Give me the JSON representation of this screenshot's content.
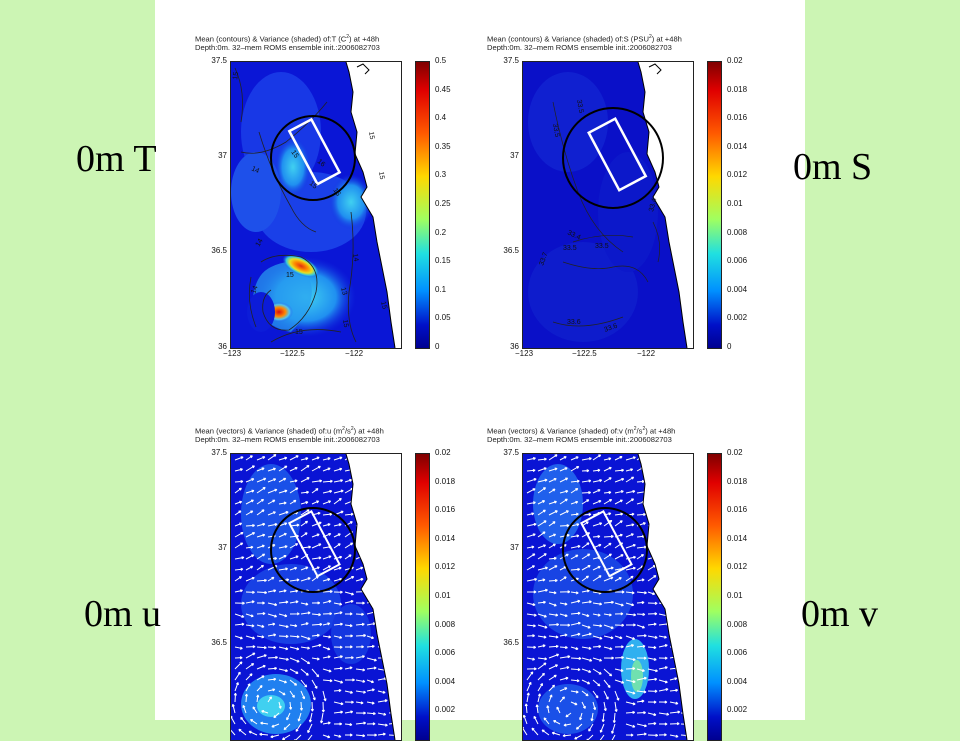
{
  "panel_labels": {
    "top_left": "0m T",
    "top_right": "0m S",
    "bottom_left": "0m u",
    "bottom_right": "0m v"
  },
  "plots": {
    "temp": {
      "title_pre": "Mean (contours) & Variance (shaded) of:T (C",
      "title_sup": "2",
      "title_post": ") at +48h",
      "subtitle": "Depth:0m. 32–mem ROMS ensemble init.:2006082703",
      "yticks": [
        "37.5",
        "37",
        "36.5",
        "36"
      ],
      "xticks": [
        "−123",
        "−122.5",
        "−122"
      ],
      "colorbar_ticks": [
        "0.5",
        "0.45",
        "0.4",
        "0.35",
        "0.3",
        "0.25",
        "0.2",
        "0.15",
        "0.1",
        "0.05",
        "0"
      ],
      "contour_labels": [
        "15",
        "15",
        "15",
        "16",
        "16",
        "14",
        "15",
        "14",
        "15",
        "14",
        "14",
        "13",
        "15",
        "15",
        "15",
        "15"
      ]
    },
    "salt": {
      "title_pre": "Mean (contours) & Variance (shaded) of:S (PSU",
      "title_sup": "2",
      "title_post": ") at +48h",
      "subtitle": "Depth:0m. 32–mem ROMS ensemble init.:2006082703",
      "yticks": [
        "37.5",
        "37",
        "36.5",
        "36"
      ],
      "xticks": [
        "−123",
        "−122.5",
        "−122"
      ],
      "colorbar_ticks": [
        "0.02",
        "0.018",
        "0.016",
        "0.014",
        "0.012",
        "0.01",
        "0.008",
        "0.006",
        "0.004",
        "0.002",
        "0"
      ],
      "contour_labels": [
        "33.5",
        "33.5",
        "33.4",
        "33.5",
        "33.5",
        "33.7",
        "33.6",
        "33.6",
        "33.4"
      ]
    },
    "u": {
      "title_pre": "Mean (vectors) & Variance (shaded) of:u (m",
      "title_sup": "2",
      "title_mid": "/s",
      "title_sup2": "2",
      "title_post": ") at +48h",
      "subtitle": "Depth:0m. 32–mem ROMS ensemble init.:2006082703",
      "yticks": [
        "37.5",
        "37",
        "36.5"
      ],
      "colorbar_ticks": [
        "0.02",
        "0.018",
        "0.016",
        "0.014",
        "0.012",
        "0.01",
        "0.008",
        "0.006",
        "0.004",
        "0.002"
      ]
    },
    "v": {
      "title_pre": "Mean (vectors) & Variance (shaded) of:v (m",
      "title_sup": "2",
      "title_mid": "/s",
      "title_sup2": "2",
      "title_post": ") at +48h",
      "subtitle": "Depth:0m. 32–mem ROMS ensemble init.:2006082703",
      "yticks": [
        "37.5",
        "37",
        "36.5"
      ],
      "colorbar_ticks": [
        "0.02",
        "0.018",
        "0.016",
        "0.014",
        "0.012",
        "0.01",
        "0.008",
        "0.006",
        "0.004",
        "0.002"
      ]
    }
  },
  "colors": {
    "background": "#ccf5b4",
    "panel": "#ffffff",
    "land": "#ffffff",
    "ocean_low": "#0a14d2",
    "region_box": "#ffffff",
    "region_circle": "#000000"
  }
}
